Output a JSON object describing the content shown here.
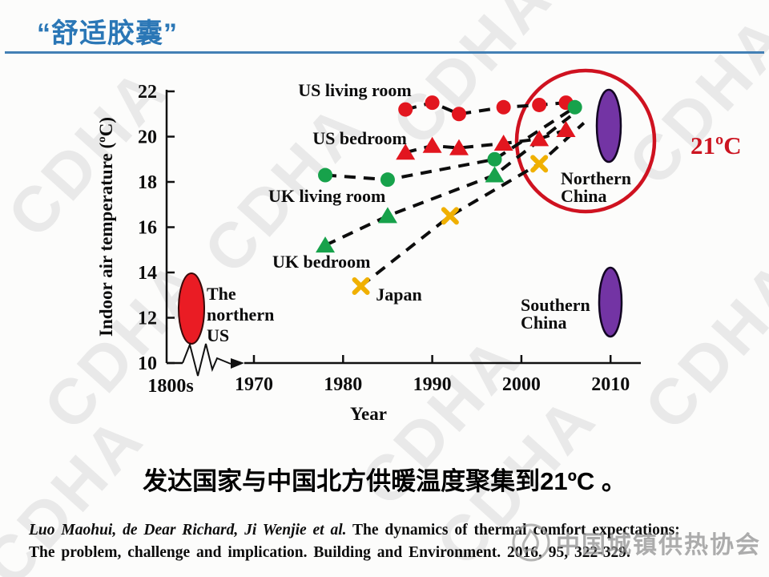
{
  "header": {
    "title": "“舒适胶囊”"
  },
  "chart_data": {
    "type": "scatter",
    "xlabel": "Year",
    "ylabel": "Indoor air temperature (ºC)",
    "x_axis_break_label": "1800s",
    "x_ticks": [
      "1970",
      "1980",
      "1990",
      "2000",
      "2010"
    ],
    "x_tick_years": [
      1970,
      1980,
      1990,
      2000,
      2010
    ],
    "y_ticks": [
      "22",
      "20",
      "18",
      "16",
      "14",
      "12",
      "10"
    ],
    "y_tick_values": [
      22,
      20,
      18,
      16,
      14,
      12,
      10
    ],
    "xlim": [
      1965,
      2012
    ],
    "ylim": [
      10,
      22
    ],
    "grid": false,
    "line_style": "dashed-black",
    "series": [
      {
        "name": "US living room",
        "marker": "circle",
        "color": "#e2161f",
        "points": [
          [
            1987,
            21.2
          ],
          [
            1990,
            21.5
          ],
          [
            1993,
            21.0
          ],
          [
            1998,
            21.3
          ],
          [
            2002,
            21.4
          ],
          [
            2005,
            21.5
          ]
        ]
      },
      {
        "name": "US bedroom",
        "marker": "triangle",
        "color": "#e2161f",
        "points": [
          [
            1987,
            19.3
          ],
          [
            1990,
            19.6
          ],
          [
            1993,
            19.5
          ],
          [
            1998,
            19.7
          ],
          [
            2002,
            19.9
          ],
          [
            2005,
            20.3
          ]
        ]
      },
      {
        "name": "UK living room",
        "marker": "circle",
        "color": "#17a24b",
        "points": [
          [
            1978,
            18.3
          ],
          [
            1985,
            18.1
          ],
          [
            1997,
            19.0
          ],
          [
            2006,
            21.3
          ]
        ]
      },
      {
        "name": "UK bedroom",
        "marker": "triangle",
        "color": "#17a24b",
        "points": [
          [
            1978,
            15.2
          ],
          [
            1985,
            16.5
          ],
          [
            1997,
            18.3
          ]
        ],
        "trend_extension": [
          2005.5,
          20.9
        ]
      },
      {
        "name": "Japan",
        "marker": "x",
        "color": "#f0b000",
        "points": [
          [
            1982,
            13.4
          ],
          [
            1992,
            16.5
          ],
          [
            2002,
            18.8
          ]
        ],
        "trend_extension": [
          2007,
          20.6
        ]
      }
    ],
    "annotations": {
      "target_temp": "21ºC",
      "target_temp_color": "#cc1420",
      "northern_china": [
        "Northern",
        "China"
      ],
      "southern_china": [
        "Southern",
        "China"
      ],
      "northern_us": [
        "The",
        "northern",
        "US"
      ],
      "highlight_circle_color": "#cf1220",
      "ellipse_purple_color": "#7334a4",
      "ellipse_red_color": "#ea1c24"
    }
  },
  "caption": {
    "text": "发达国家与中国北方供暖温度聚集到21ºC 。"
  },
  "citation": {
    "authors": "Luo Maohui, de Dear Richard, Ji Wenjie et al.",
    "title_rest": "The dynamics of thermal comfort expectations:",
    "line2": "The problem, challenge and implication.  Building and Environment.  2016, 95, 322-329."
  },
  "watermark": {
    "cdha": "CDHA",
    "association": "中国城镇供热协会"
  }
}
